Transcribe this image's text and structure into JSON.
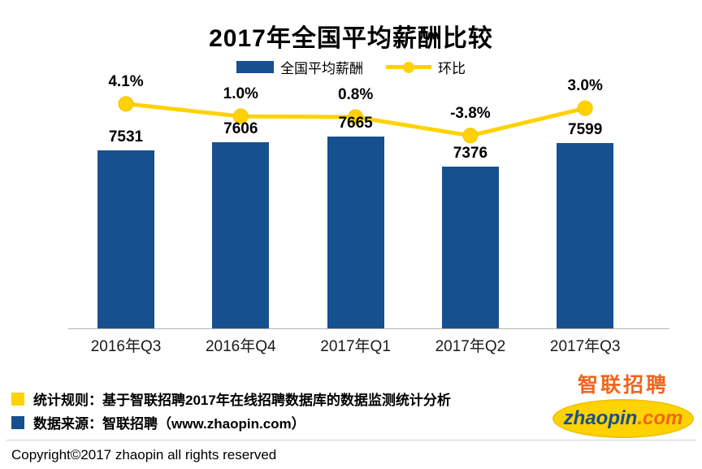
{
  "chart_data": {
    "type": "bar",
    "title": "2017年全国平均薪酬比较",
    "categories": [
      "2016年Q3",
      "2016年Q4",
      "2017年Q1",
      "2017年Q2",
      "2017年Q3"
    ],
    "series": [
      {
        "name": "全国平均薪酬",
        "type": "bar",
        "values": [
          7531,
          7606,
          7665,
          7376,
          7599
        ]
      },
      {
        "name": "环比",
        "type": "line",
        "values": [
          4.1,
          1.0,
          0.8,
          -3.8,
          3.0
        ],
        "labels": [
          "4.1%",
          "1.0%",
          "0.8%",
          "-3.8%",
          "3.0%"
        ]
      }
    ],
    "xlabel": "",
    "ylabel": "",
    "bar_axis_hint": [
      5800,
      8250
    ],
    "grid": false,
    "legend_position": "top"
  },
  "footer": {
    "note1": "统计规则：基于智联招聘2017年在线招聘数据库的数据监测统计分析",
    "note2": "数据来源：智联招聘（www.zhaopin.com）",
    "copyright": "Copyright©2017 zhaopin all rights reserved"
  },
  "logo": {
    "cn": "智联招聘",
    "en_main": "zhaopin",
    "en_suffix": ".com"
  },
  "colors": {
    "bar": "#17508E",
    "line": "#FFD200",
    "logo_orange": "#F2641C",
    "logo_blue": "#17508E"
  }
}
